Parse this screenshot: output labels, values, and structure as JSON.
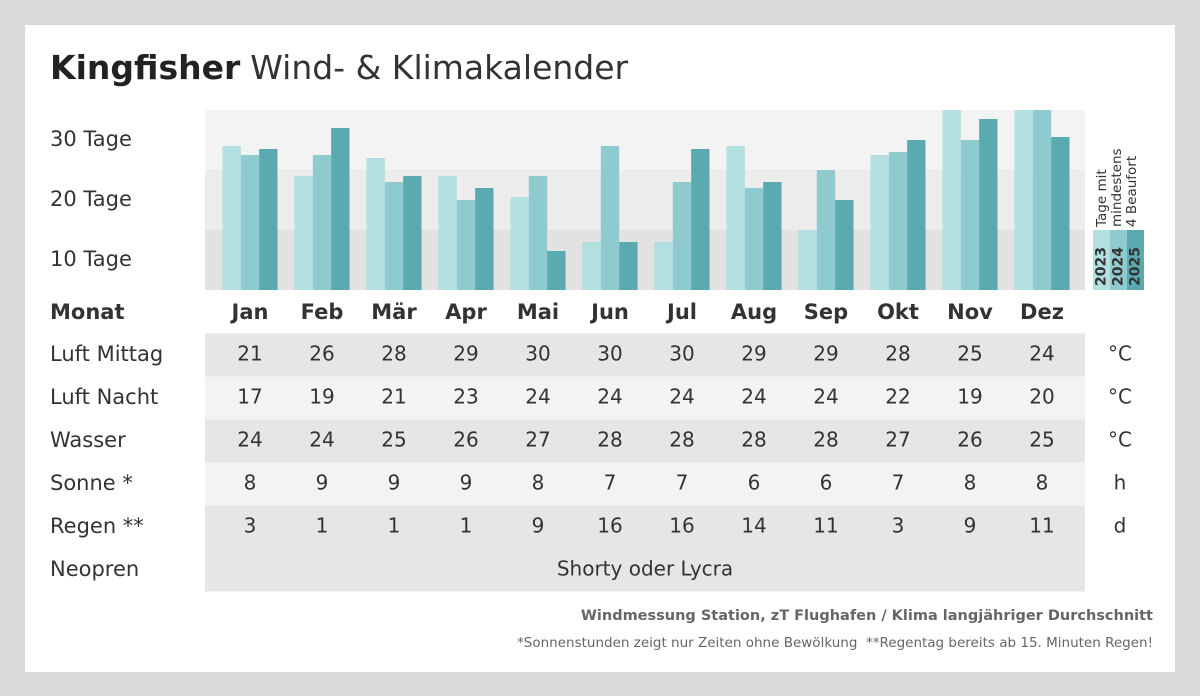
{
  "title": {
    "brand": "Kingfisher",
    "text": "Wind- & Klimakalender"
  },
  "chart_data": {
    "type": "bar",
    "ylabel": [
      "Tage mit",
      "mindestens",
      "4 Beaufort"
    ],
    "categories": [
      "Jan",
      "Feb",
      "Mär",
      "Apr",
      "Mai",
      "Jun",
      "Jul",
      "Aug",
      "Sep",
      "Okt",
      "Nov",
      "Dez"
    ],
    "series": [
      {
        "name": "2023",
        "color": "#b3dfe1",
        "values": [
          29,
          24,
          27,
          24,
          20.5,
          13,
          13,
          29,
          15,
          27.5,
          35,
          35
        ]
      },
      {
        "name": "2024",
        "color": "#8fcbce",
        "values": [
          27.5,
          27.5,
          23,
          20,
          24,
          29,
          23,
          22,
          25,
          28,
          30,
          35
        ]
      },
      {
        "name": "2025",
        "color": "#5aabb0",
        "values": [
          28.5,
          32,
          24,
          22,
          11.5,
          13,
          28.5,
          23,
          20,
          30,
          33.5,
          30.5
        ]
      }
    ],
    "ylim": [
      5,
      35
    ],
    "yticks": [
      {
        "value": 10,
        "label": "10 Tage"
      },
      {
        "value": 20,
        "label": "20 Tage"
      },
      {
        "value": 30,
        "label": "30 Tage"
      }
    ]
  },
  "table": {
    "header": "Monat",
    "rows": [
      {
        "label": "Luft Mittag",
        "values": [
          21,
          26,
          28,
          29,
          30,
          30,
          30,
          29,
          29,
          28,
          25,
          24
        ],
        "unit": "°C"
      },
      {
        "label": "Luft Nacht",
        "values": [
          17,
          19,
          21,
          23,
          24,
          24,
          24,
          24,
          24,
          22,
          19,
          20
        ],
        "unit": "°C"
      },
      {
        "label": "Wasser",
        "values": [
          24,
          24,
          25,
          26,
          27,
          28,
          28,
          28,
          28,
          27,
          26,
          25
        ],
        "unit": "°C"
      },
      {
        "label": "Sonne *",
        "values": [
          8,
          9,
          9,
          9,
          8,
          7,
          7,
          6,
          6,
          7,
          8,
          8
        ],
        "unit": "h"
      },
      {
        "label": "Regen **",
        "values": [
          3,
          1,
          1,
          1,
          9,
          16,
          16,
          14,
          11,
          3,
          9,
          11
        ],
        "unit": "d"
      }
    ],
    "neopren": {
      "label": "Neopren",
      "value": "Shorty oder Lycra"
    }
  },
  "footer": {
    "source": "Windmessung Station, zT Flughafen / Klima langjähriger Durchschnitt",
    "note": "*Sonnenstunden zeigt nur Zeiten ohne Bewölkung  **Regentag bereits ab 15. Minuten Regen!"
  }
}
